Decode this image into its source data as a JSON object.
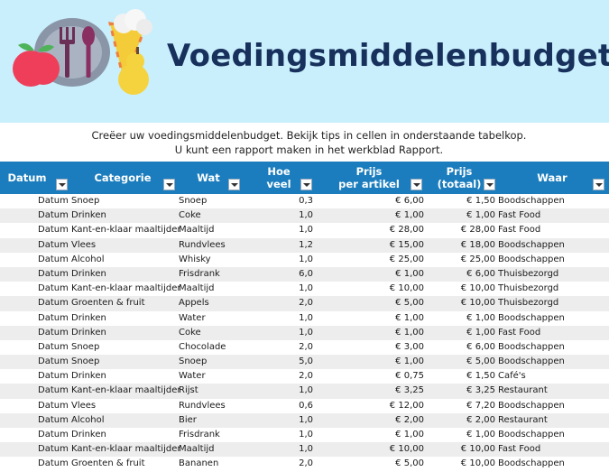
{
  "header": {
    "title": "Voedingsmiddelenbudget"
  },
  "intro": {
    "line1": "Creëer uw voedingsmiddelenbudget. Bekijk tips in cellen in onderstaande tabelkop.",
    "line2": "U kunt een rapport maken in het werkblad Rapport."
  },
  "columns": {
    "datum": "Datum",
    "categorie": "Categorie",
    "wat": "Wat",
    "hoeveel_1": "Hoe",
    "hoeveel_2": "veel",
    "prijs_1": "Prijs",
    "prijs_2": "per artikel",
    "totaal_1": "Prijs",
    "totaal_2": "(totaal)",
    "waar": "Waar"
  },
  "currency": "€",
  "rows": [
    {
      "datum": "Datum",
      "categorie": "Snoep",
      "wat": "Snoep",
      "hoeveel": "0,3",
      "prijs": "6,00",
      "totaal": "1,50",
      "waar": "Boodschappen"
    },
    {
      "datum": "Datum",
      "categorie": "Drinken",
      "wat": "Coke",
      "hoeveel": "1,0",
      "prijs": "1,00",
      "totaal": "1,00",
      "waar": "Fast Food"
    },
    {
      "datum": "Datum",
      "categorie": "Kant-en-klaar maaltijden",
      "wat": "Maaltijd",
      "hoeveel": "1,0",
      "prijs": "28,00",
      "totaal": "28,00",
      "waar": "Fast Food"
    },
    {
      "datum": "Datum",
      "categorie": "Vlees",
      "wat": "Rundvlees",
      "hoeveel": "1,2",
      "prijs": "15,00",
      "totaal": "18,00",
      "waar": "Boodschappen"
    },
    {
      "datum": "Datum",
      "categorie": "Alcohol",
      "wat": "Whisky",
      "hoeveel": "1,0",
      "prijs": "25,00",
      "totaal": "25,00",
      "waar": "Boodschappen"
    },
    {
      "datum": "Datum",
      "categorie": "Drinken",
      "wat": "Frisdrank",
      "hoeveel": "6,0",
      "prijs": "1,00",
      "totaal": "6,00",
      "waar": "Thuisbezorgd"
    },
    {
      "datum": "Datum",
      "categorie": "Kant-en-klaar maaltijden",
      "wat": "Maaltijd",
      "hoeveel": "1,0",
      "prijs": "10,00",
      "totaal": "10,00",
      "waar": "Thuisbezorgd"
    },
    {
      "datum": "Datum",
      "categorie": "Groenten & fruit",
      "wat": "Appels",
      "hoeveel": "2,0",
      "prijs": "5,00",
      "totaal": "10,00",
      "waar": "Thuisbezorgd"
    },
    {
      "datum": "Datum",
      "categorie": "Drinken",
      "wat": "Water",
      "hoeveel": "1,0",
      "prijs": "1,00",
      "totaal": "1,00",
      "waar": "Boodschappen"
    },
    {
      "datum": "Datum",
      "categorie": "Drinken",
      "wat": "Coke",
      "hoeveel": "1,0",
      "prijs": "1,00",
      "totaal": "1,00",
      "waar": "Fast Food"
    },
    {
      "datum": "Datum",
      "categorie": "Snoep",
      "wat": "Chocolade",
      "hoeveel": "2,0",
      "prijs": "3,00",
      "totaal": "6,00",
      "waar": "Boodschappen"
    },
    {
      "datum": "Datum",
      "categorie": "Snoep",
      "wat": "Snoep",
      "hoeveel": "5,0",
      "prijs": "1,00",
      "totaal": "5,00",
      "waar": "Boodschappen"
    },
    {
      "datum": "Datum",
      "categorie": "Drinken",
      "wat": "Water",
      "hoeveel": "2,0",
      "prijs": "0,75",
      "totaal": "1,50",
      "waar": "Café's"
    },
    {
      "datum": "Datum",
      "categorie": "Kant-en-klaar maaltijden",
      "wat": "Rijst",
      "hoeveel": "1,0",
      "prijs": "3,25",
      "totaal": "3,25",
      "waar": "Restaurant"
    },
    {
      "datum": "Datum",
      "categorie": "Vlees",
      "wat": "Rundvlees",
      "hoeveel": "0,6",
      "prijs": "12,00",
      "totaal": "7,20",
      "waar": "Boodschappen"
    },
    {
      "datum": "Datum",
      "categorie": "Alcohol",
      "wat": "Bier",
      "hoeveel": "1,0",
      "prijs": "2,00",
      "totaal": "2,00",
      "waar": "Restaurant"
    },
    {
      "datum": "Datum",
      "categorie": "Drinken",
      "wat": "Frisdrank",
      "hoeveel": "1,0",
      "prijs": "1,00",
      "totaal": "1,00",
      "waar": "Boodschappen"
    },
    {
      "datum": "Datum",
      "categorie": "Kant-en-klaar maaltijden",
      "wat": "Maaltijd",
      "hoeveel": "1,0",
      "prijs": "10,00",
      "totaal": "10,00",
      "waar": "Fast Food"
    },
    {
      "datum": "Datum",
      "categorie": "Groenten & fruit",
      "wat": "Bananen",
      "hoeveel": "2,0",
      "prijs": "5,00",
      "totaal": "10,00",
      "waar": "Boodschappen"
    }
  ],
  "colors": {
    "banner": "#c9effc",
    "title": "#17305c",
    "header_bar": "#1b7dbd",
    "row_alt": "#ededed"
  },
  "icons": [
    "apple-icon",
    "plate-icon",
    "fork-icon",
    "spoon-icon",
    "cheese-icon",
    "pear-icon",
    "filter-dropdown-icon"
  ]
}
